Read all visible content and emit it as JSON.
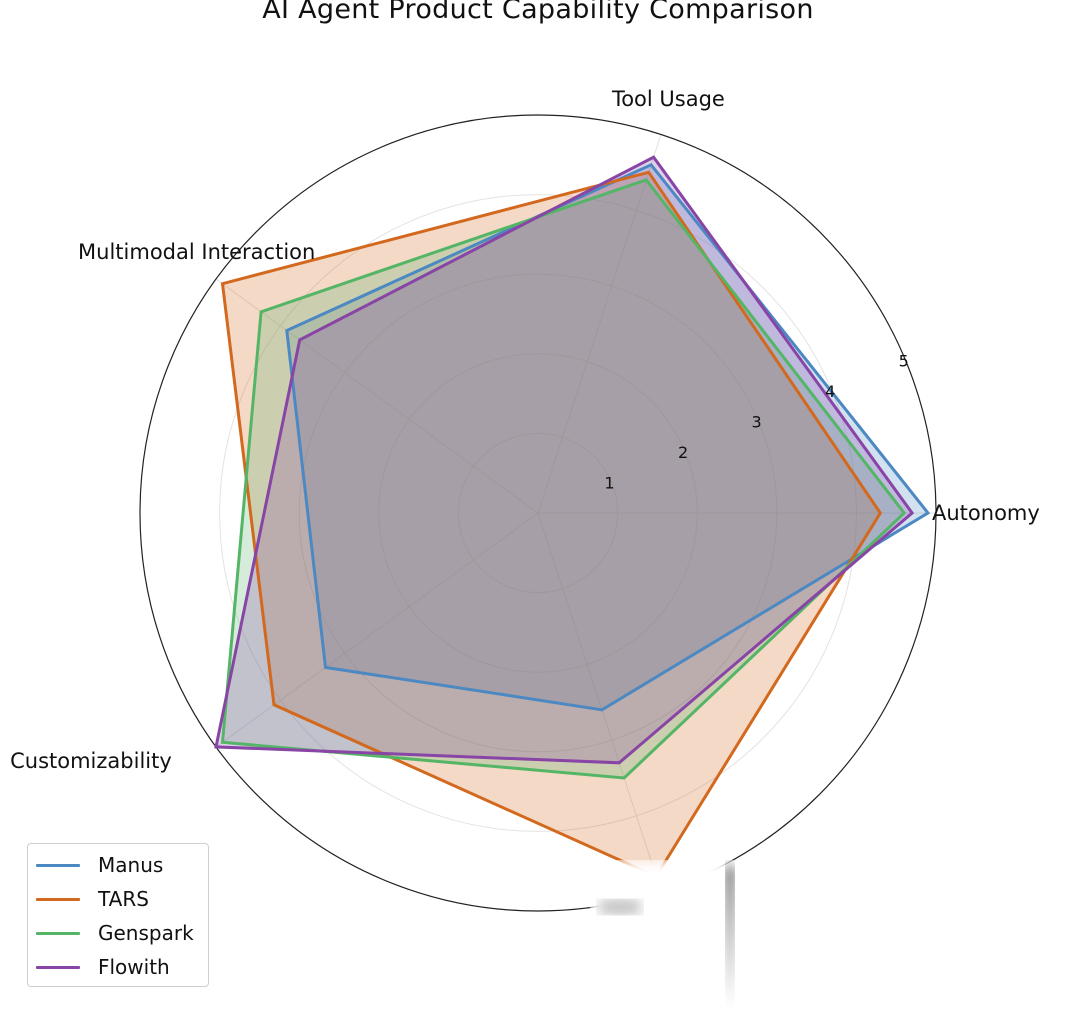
{
  "chart_data": {
    "type": "radar",
    "title": "AI Agent Product Capability Comparison",
    "axes": [
      "Autonomy",
      "Tool Usage",
      "Multimodal Interaction",
      "Customizability",
      "Open Source"
    ],
    "radial_ticks": [
      "1",
      "2",
      "3",
      "4",
      "5"
    ],
    "rlim": [
      0,
      5
    ],
    "grid": true,
    "legend_position": "bottom-left",
    "series": [
      {
        "name": "Manus",
        "values": [
          4.9,
          4.6,
          3.9,
          3.3,
          2.6
        ],
        "color": "#4C88C2"
      },
      {
        "name": "TARS",
        "values": [
          4.3,
          4.5,
          4.9,
          4.1,
          4.8
        ],
        "color": "#D2691E"
      },
      {
        "name": "Genspark",
        "values": [
          4.6,
          4.4,
          4.3,
          4.9,
          3.5
        ],
        "color": "#55B566"
      },
      {
        "name": "Flowith",
        "values": [
          4.7,
          4.7,
          3.7,
          5.0,
          3.3
        ],
        "color": "#8845A6"
      }
    ]
  }
}
